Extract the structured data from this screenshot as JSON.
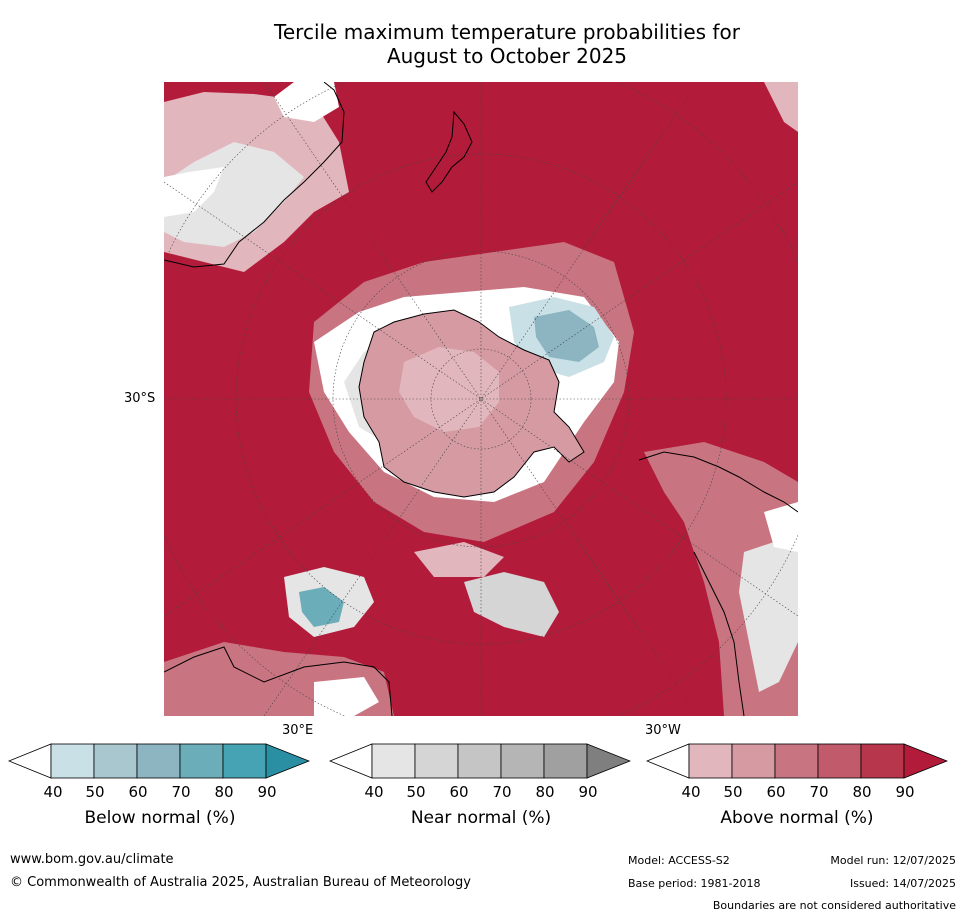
{
  "title_line1": "Tercile maximum temperature probabilities for",
  "title_line2": "August to October 2025",
  "map": {
    "projection": "south-polar-stereographic",
    "labels": {
      "lat_30s": "30°S",
      "lon_30e": "30°E",
      "lon_30w": "30°W"
    }
  },
  "colorbars": [
    {
      "id": "below",
      "label": "Below normal (%)",
      "ticks": [
        "40",
        "50",
        "60",
        "70",
        "80",
        "90"
      ],
      "colors": [
        "#ffffff",
        "#c9e0e6",
        "#a9c7cf",
        "#8cb5c1",
        "#6badb8",
        "#46a3b3",
        "#2a8fa3"
      ]
    },
    {
      "id": "near",
      "label": "Near normal (%)",
      "ticks": [
        "40",
        "50",
        "60",
        "70",
        "80",
        "90"
      ],
      "colors": [
        "#ffffff",
        "#e5e5e5",
        "#d5d5d5",
        "#c5c5c5",
        "#b5b5b5",
        "#a0a0a0",
        "#7f7f7f"
      ]
    },
    {
      "id": "above",
      "label": "Above normal (%)",
      "ticks": [
        "40",
        "50",
        "60",
        "70",
        "80",
        "90"
      ],
      "colors": [
        "#ffffff",
        "#e2b6bd",
        "#d69aa3",
        "#c97481",
        "#c15a6a",
        "#b8364c",
        "#b31b3a"
      ]
    }
  ],
  "footer": {
    "website": "www.bom.gov.au/climate",
    "copyright": "© Commonwealth of Australia 2025, Australian Bureau of Meteorology",
    "model": "Model: ACCESS-S2",
    "model_run": "Model run: 12/07/2025",
    "base_period": "Base period: 1981-2018",
    "issued": "Issued: 14/07/2025",
    "disclaimer": "Boundaries are not considered authoritative"
  }
}
